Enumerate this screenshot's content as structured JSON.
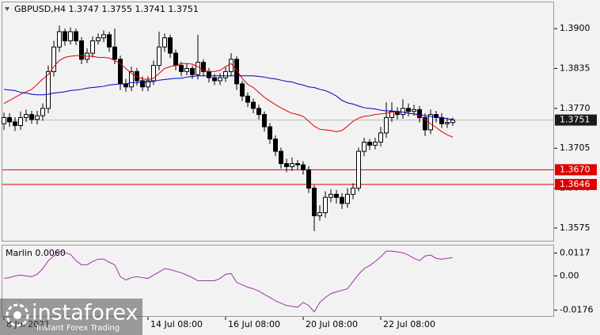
{
  "chart_data": {
    "type": "candlestick",
    "title": "GBPUSD,H4 1.3747 1.3755 1.3741 1.3751",
    "open": [
      1.3745,
      1.3755,
      1.3748,
      1.3742,
      1.3755,
      1.376,
      1.3752,
      1.3758,
      1.377,
      1.383,
      1.387,
      1.3895,
      1.388,
      1.3895,
      1.388,
      1.385,
      1.386,
      1.388,
      1.3885,
      1.389,
      1.387,
      1.385,
      1.381,
      1.3805,
      1.383,
      1.3815,
      1.3805,
      1.3815,
      1.384,
      1.387,
      1.3885,
      1.386,
      1.384,
      1.383,
      1.3835,
      1.3825,
      1.3845,
      1.383,
      1.382,
      1.3815,
      1.382,
      1.383,
      1.385,
      1.381,
      1.379,
      1.378,
      1.377,
      1.376,
      1.374,
      1.372,
      1.37,
      1.368,
      1.3675,
      1.368,
      1.3678,
      1.367,
      1.364,
      1.3595,
      1.36,
      1.3625,
      1.363,
      1.3625,
      1.3615,
      1.363,
      1.364,
      1.37,
      1.3715,
      1.371,
      1.3715,
      1.373,
      1.3755,
      1.3765,
      1.376,
      1.377,
      1.3765,
      1.3768,
      1.3755,
      1.3735,
      1.376,
      1.3755,
      1.3745,
      1.3747
    ],
    "high": [
      1.3763,
      1.3762,
      1.3756,
      1.3765,
      1.3768,
      1.3766,
      1.3766,
      1.3778,
      1.384,
      1.388,
      1.3905,
      1.39,
      1.3902,
      1.39,
      1.3886,
      1.3868,
      1.3887,
      1.3892,
      1.3897,
      1.3895,
      1.39,
      1.3856,
      1.3818,
      1.3838,
      1.3836,
      1.3822,
      1.3822,
      1.3848,
      1.3895,
      1.3892,
      1.389,
      1.3866,
      1.3846,
      1.3843,
      1.384,
      1.389,
      1.385,
      1.3836,
      1.3826,
      1.3827,
      1.3838,
      1.386,
      1.3855,
      1.3815,
      1.3796,
      1.3786,
      1.3776,
      1.3765,
      1.3746,
      1.3726,
      1.3706,
      1.3688,
      1.369,
      1.3686,
      1.3684,
      1.3676,
      1.3645,
      1.3612,
      1.3635,
      1.3638,
      1.3637,
      1.3632,
      1.364,
      1.3648,
      1.3706,
      1.3722,
      1.372,
      1.3722,
      1.374,
      1.378,
      1.378,
      1.3772,
      1.3785,
      1.3778,
      1.3776,
      1.3774,
      1.3762,
      1.3768,
      1.3766,
      1.3762,
      1.3755,
      1.3755
    ],
    "low": [
      1.3735,
      1.374,
      1.3733,
      1.3735,
      1.3748,
      1.3745,
      1.3744,
      1.375,
      1.3762,
      1.3822,
      1.3862,
      1.3872,
      1.3874,
      1.3873,
      1.3842,
      1.3844,
      1.3853,
      1.3874,
      1.3878,
      1.3862,
      1.3842,
      1.38,
      1.3797,
      1.3798,
      1.3807,
      1.3798,
      1.3798,
      1.3808,
      1.3832,
      1.3862,
      1.3852,
      1.3832,
      1.3822,
      1.3824,
      1.3818,
      1.3817,
      1.3822,
      1.3812,
      1.3808,
      1.3808,
      1.3813,
      1.3822,
      1.38,
      1.3782,
      1.3772,
      1.3762,
      1.3752,
      1.3732,
      1.3712,
      1.3692,
      1.3672,
      1.3666,
      1.3668,
      1.367,
      1.3662,
      1.3632,
      1.357,
      1.3587,
      1.3592,
      1.3617,
      1.3615,
      1.3606,
      1.3608,
      1.3622,
      1.3635,
      1.3692,
      1.3702,
      1.3703,
      1.3708,
      1.3722,
      1.3748,
      1.3752,
      1.3753,
      1.3757,
      1.3758,
      1.3747,
      1.3725,
      1.3728,
      1.3747,
      1.3738,
      1.3738,
      1.3741
    ],
    "close": [
      1.3755,
      1.3748,
      1.3742,
      1.3755,
      1.376,
      1.3752,
      1.3758,
      1.377,
      1.383,
      1.387,
      1.3895,
      1.388,
      1.3895,
      1.388,
      1.385,
      1.386,
      1.388,
      1.3885,
      1.389,
      1.387,
      1.385,
      1.381,
      1.3805,
      1.383,
      1.3815,
      1.3805,
      1.3815,
      1.384,
      1.387,
      1.3885,
      1.386,
      1.384,
      1.383,
      1.3835,
      1.3825,
      1.3845,
      1.383,
      1.382,
      1.3815,
      1.382,
      1.383,
      1.385,
      1.381,
      1.379,
      1.378,
      1.377,
      1.376,
      1.374,
      1.372,
      1.37,
      1.368,
      1.3675,
      1.368,
      1.3678,
      1.367,
      1.364,
      1.3595,
      1.36,
      1.3625,
      1.363,
      1.3625,
      1.3615,
      1.363,
      1.364,
      1.37,
      1.3715,
      1.371,
      1.3715,
      1.373,
      1.3755,
      1.3765,
      1.376,
      1.377,
      1.3765,
      1.3768,
      1.3755,
      1.3735,
      1.376,
      1.3755,
      1.3745,
      1.3747,
      1.3751
    ],
    "up_color": "#ffffff",
    "down_color": "#000000",
    "series": [
      {
        "color": "#e00000",
        "values": [
          1.3778,
          1.3783,
          1.3788,
          1.3793,
          1.3797,
          1.3801,
          1.3809,
          1.3818,
          1.3825,
          1.3838,
          1.3848,
          1.3853,
          1.3855,
          1.3856,
          1.3856,
          1.3855,
          1.3855,
          1.3853,
          1.3853,
          1.3852,
          1.3848,
          1.3843,
          1.3835,
          1.3827,
          1.3822,
          1.3818,
          1.3817,
          1.3819,
          1.3827,
          1.3835,
          1.3838,
          1.384,
          1.3843,
          1.3843,
          1.3842,
          1.3838,
          1.3832,
          1.383,
          1.383,
          1.3832,
          1.3838,
          1.3843,
          1.3832,
          1.3819,
          1.3809,
          1.3804,
          1.3796,
          1.3788,
          1.3782,
          1.3776,
          1.3771,
          1.3766,
          1.3762,
          1.376,
          1.3757,
          1.3749,
          1.3741,
          1.3736,
          1.3735,
          1.3734,
          1.3732,
          1.3734,
          1.3741,
          1.3749,
          1.3754,
          1.3757,
          1.3758,
          1.376,
          1.3761,
          1.3762,
          1.3764,
          1.3764,
          1.3764,
          1.3762,
          1.3761,
          1.3758,
          1.3752,
          1.3745,
          1.3739,
          1.3732,
          1.3727,
          1.3723
        ]
      },
      {
        "color": "#0000c8",
        "values": [
          1.3801,
          1.38,
          1.3799,
          1.3796,
          1.3795,
          1.3793,
          1.3792,
          1.3792,
          1.3793,
          1.3795,
          1.3796,
          1.3797,
          1.3799,
          1.38,
          1.3801,
          1.3803,
          1.3804,
          1.3805,
          1.3806,
          1.3808,
          1.3809,
          1.381,
          1.381,
          1.3812,
          1.3812,
          1.3813,
          1.3813,
          1.3814,
          1.3816,
          1.3817,
          1.3818,
          1.3819,
          1.3819,
          1.3821,
          1.3822,
          1.3823,
          1.3823,
          1.3823,
          1.3823,
          1.3823,
          1.3823,
          1.3823,
          1.3823,
          1.3823,
          1.3823,
          1.3823,
          1.3822,
          1.3821,
          1.3819,
          1.3818,
          1.3816,
          1.3814,
          1.3813,
          1.381,
          1.3808,
          1.3805,
          1.3804,
          1.3801,
          1.3799,
          1.3795,
          1.379,
          1.3783,
          1.3779,
          1.3777,
          1.3774,
          1.3771,
          1.377,
          1.3769,
          1.3767,
          1.3766,
          1.3766,
          1.3765,
          1.3764,
          1.3762,
          1.3761,
          1.376,
          1.3758,
          1.3757,
          1.3756,
          1.3755,
          1.3753,
          1.3752
        ]
      }
    ],
    "ylim": [
      1.3553,
      1.3944
    ],
    "yticks": [
      {
        "value": 1.39,
        "label": "1.3900"
      },
      {
        "value": 1.3835,
        "label": "1.3835"
      },
      {
        "value": 1.377,
        "label": "1.3770"
      },
      {
        "value": 1.3705,
        "label": "1.3705"
      },
      {
        "value": 1.364,
        "label": "1.3640"
      },
      {
        "value": 1.3575,
        "label": "1.3575"
      }
    ],
    "levels": [
      {
        "value": 1.367,
        "label": "1.3670",
        "color": "#e00000"
      },
      {
        "value": 1.3646,
        "label": "1.3646",
        "color": "#e00000"
      }
    ],
    "last_price": {
      "value": 1.3751,
      "label": "1.3751"
    },
    "xticks": [
      {
        "value": 0,
        "label": "8 Jul 2021"
      },
      {
        "value": 26,
        "label": "14 Jul 08:00"
      },
      {
        "value": 40,
        "label": "16 Jul 08:00"
      },
      {
        "value": 54,
        "label": "20 Jul 08:00"
      },
      {
        "value": 68,
        "label": "22 Jul 08:00"
      }
    ],
    "indicator": {
      "type": "line",
      "title": "Marlin 0.0060",
      "color": "#a030a8",
      "values": [
        -0.0013,
        -0.0009,
        0.0,
        0.0004,
        0.0,
        -0.0004,
        0.0008,
        0.0037,
        0.0078,
        0.0102,
        0.0127,
        0.0119,
        0.0111,
        0.0078,
        0.0057,
        0.0057,
        0.0074,
        0.0086,
        0.0086,
        0.007,
        0.0057,
        -0.0004,
        -0.0021,
        -0.0009,
        -0.0004,
        -0.0009,
        -0.0013,
        0.0004,
        0.002,
        0.0037,
        0.0033,
        0.0024,
        0.0016,
        0.0004,
        -0.0009,
        -0.0025,
        -0.0025,
        -0.0025,
        -0.0025,
        -0.0013,
        0.0008,
        0.0012,
        -0.0033,
        -0.0046,
        -0.0058,
        -0.0066,
        -0.0078,
        -0.0095,
        -0.0111,
        -0.0128,
        -0.014,
        -0.0152,
        -0.0156,
        -0.0161,
        -0.0136,
        -0.0152,
        -0.0185,
        -0.0136,
        -0.0111,
        -0.0091,
        -0.0082,
        -0.0074,
        -0.0066,
        -0.0029,
        0.0008,
        0.0037,
        0.0053,
        0.0074,
        0.0098,
        0.0127,
        0.0127,
        0.0123,
        0.0119,
        0.0107,
        0.009,
        0.0078,
        0.0102,
        0.0107,
        0.009,
        0.0086,
        0.009,
        0.0094
      ],
      "ylim": [
        -0.021,
        0.016
      ],
      "yticks": [
        {
          "value": 0.0117,
          "label": "0.0117"
        },
        {
          "value": 0,
          "label": "0.00"
        },
        {
          "value": -0.0176,
          "label": "-0.0176"
        }
      ]
    }
  },
  "watermark": {
    "brand": "instaforex",
    "tagline": "Instant Forex Trading"
  }
}
